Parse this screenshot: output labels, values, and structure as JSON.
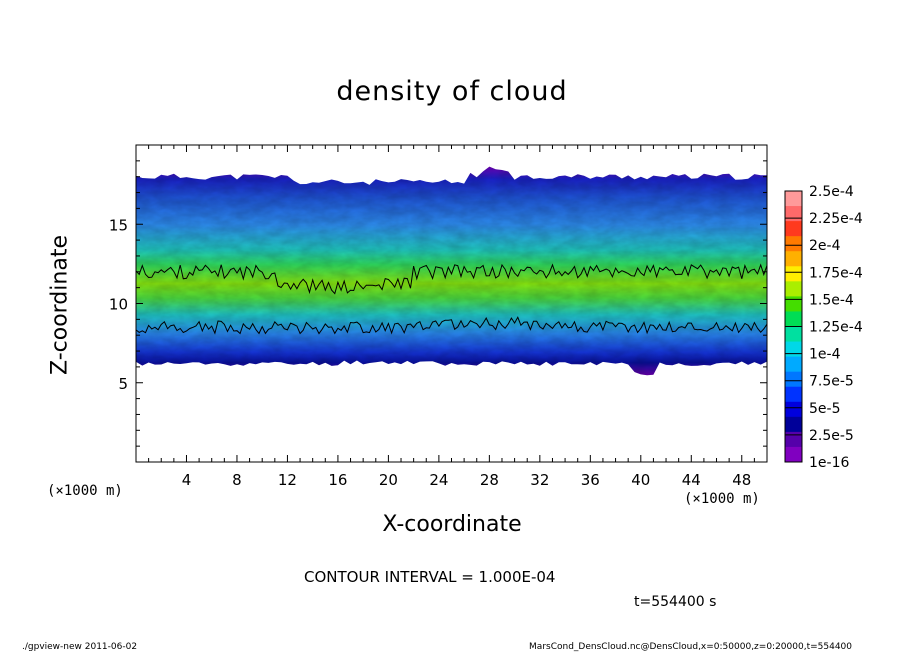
{
  "chart_data": {
    "type": "heatmap",
    "title": "density of cloud",
    "xlabel": "X-coordinate",
    "ylabel": "Z-coordinate",
    "x_unit": "(×1000 m)",
    "y_unit": "(×1000 m)",
    "xlim": [
      0,
      50
    ],
    "ylim": [
      0,
      20
    ],
    "x_ticks": [
      4,
      8,
      12,
      16,
      20,
      24,
      28,
      32,
      36,
      40,
      44,
      48
    ],
    "y_ticks": [
      5,
      10,
      15
    ],
    "colorbar": {
      "labels": [
        "2.5e-4",
        "2.25e-4",
        "2e-4",
        "1.75e-4",
        "1.5e-4",
        "1.25e-4",
        "1e-4",
        "7.5e-5",
        "5e-5",
        "2.5e-5",
        "1e-16"
      ],
      "levels": [
        0.00025,
        0.000225,
        0.0002,
        0.000175,
        0.00015,
        0.000125,
        0.0001,
        7.5e-05,
        5e-05,
        2.5e-05,
        1e-16
      ],
      "colors": [
        "#ff9a9a",
        "#ff6a6a",
        "#ff3a1e",
        "#ff7a00",
        "#ffb000",
        "#ffee00",
        "#aaee00",
        "#44dd00",
        "#00dd55",
        "#00e0a0",
        "#00d8e8",
        "#00aaff",
        "#0077ff",
        "#0033ff",
        "#0000dd",
        "#000099",
        "#5500aa",
        "#8000c0"
      ]
    },
    "cloud_layer": {
      "z_bottom": 6.2,
      "z_top": 18.0,
      "peak_band": [
        8.5,
        12.0
      ],
      "peak_value": 0.00015
    },
    "contour_interval": "CONTOUR INTERVAL = 1.000E-04"
  },
  "labels": {
    "time": "t=554400 s",
    "footer_left": "./gpview-new 2011-06-02",
    "footer_right": "MarsCond_DensCloud.nc@DensCloud,x=0:50000,z=0:20000,t=554400"
  }
}
